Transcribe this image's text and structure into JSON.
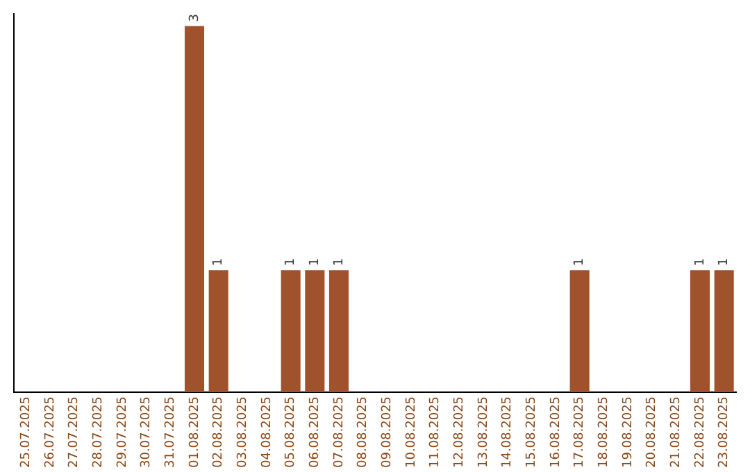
{
  "chart_data": {
    "type": "bar",
    "categories": [
      "25.07.2025",
      "26.07.2025",
      "27.07.2025",
      "28.07.2025",
      "29.07.2025",
      "30.07.2025",
      "31.07.2025",
      "01.08.2025",
      "02.08.2025",
      "03.08.2025",
      "04.08.2025",
      "05.08.2025",
      "06.08.2025",
      "07.08.2025",
      "08.08.2025",
      "09.08.2025",
      "10.08.2025",
      "11.08.2025",
      "12.08.2025",
      "13.08.2025",
      "14.08.2025",
      "15.08.2025",
      "16.08.2025",
      "17.08.2025",
      "18.08.2025",
      "19.08.2025",
      "20.08.2025",
      "21.08.2025",
      "22.08.2025",
      "23.08.2025"
    ],
    "values": [
      0,
      0,
      0,
      0,
      0,
      0,
      0,
      3,
      1,
      0,
      0,
      1,
      1,
      1,
      0,
      0,
      0,
      0,
      0,
      0,
      0,
      0,
      0,
      1,
      0,
      0,
      0,
      0,
      1,
      1
    ],
    "color": "#a0522d",
    "ylim": [
      0,
      3.1
    ],
    "tick_labels": "x",
    "value_labels": [
      null,
      null,
      null,
      null,
      null,
      null,
      null,
      "3",
      "1",
      null,
      null,
      "1",
      "1",
      "1",
      null,
      null,
      null,
      null,
      null,
      null,
      null,
      null,
      null,
      "1",
      null,
      null,
      null,
      null,
      "1",
      "1"
    ],
    "grid": false,
    "legend": false
  }
}
